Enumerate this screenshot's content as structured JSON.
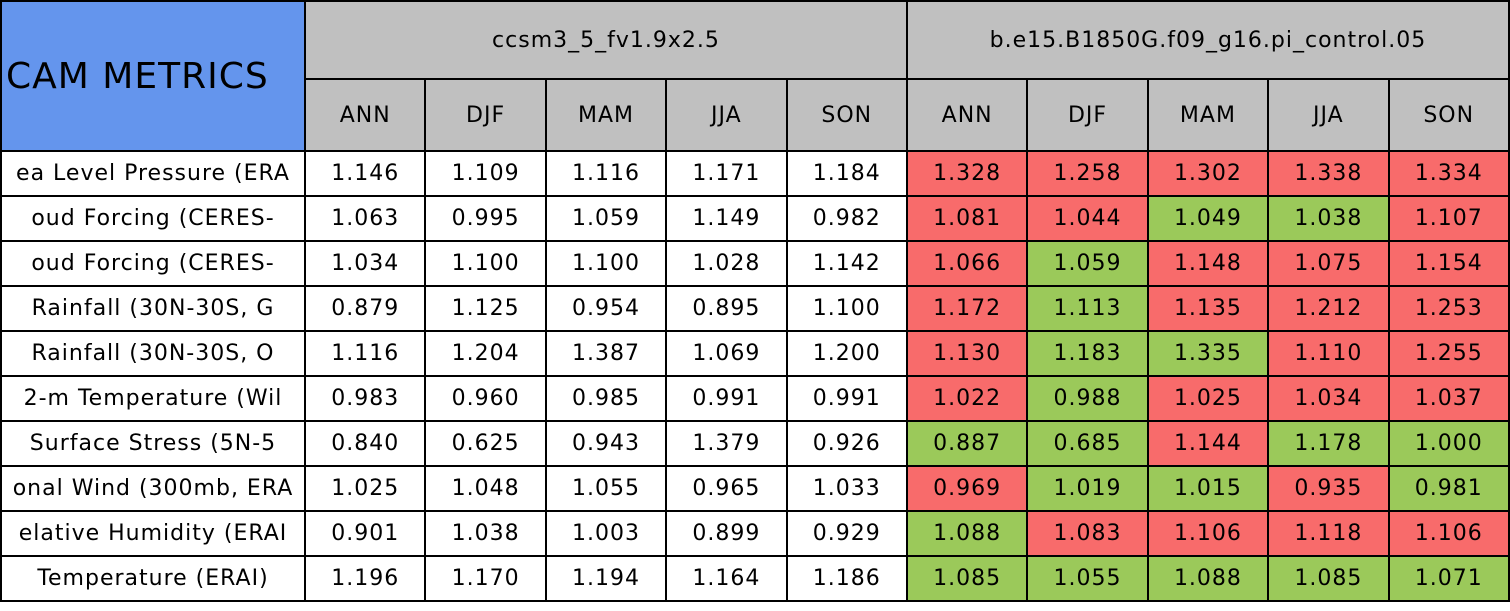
{
  "header": {
    "title": "CAM METRICS",
    "models": [
      "ccsm3_5_fv1.9x2.5",
      "b.e15.B1850G.f09_g16.pi_control.05"
    ],
    "seasons": [
      "ANN",
      "DJF",
      "MAM",
      "JJA",
      "SON",
      "ANN",
      "DJF",
      "MAM",
      "JJA",
      "SON"
    ]
  },
  "colors": {
    "title": "#6495ed",
    "header": "#c0c0c0",
    "plain": "#ffffff",
    "worse": "#f86b6b",
    "better": "#9bc95a"
  },
  "table": {
    "rows": [
      {
        "label": "ea Level Pressure (ERA",
        "cells": [
          "1.146",
          "1.109",
          "1.116",
          "1.171",
          "1.184",
          "1.328",
          "1.258",
          "1.302",
          "1.338",
          "1.334"
        ],
        "shade": [
          "plain",
          "plain",
          "plain",
          "plain",
          "plain",
          "worse",
          "worse",
          "worse",
          "worse",
          "worse"
        ]
      },
      {
        "label": "oud Forcing (CERES-",
        "cells": [
          "1.063",
          "0.995",
          "1.059",
          "1.149",
          "0.982",
          "1.081",
          "1.044",
          "1.049",
          "1.038",
          "1.107"
        ],
        "shade": [
          "plain",
          "plain",
          "plain",
          "plain",
          "plain",
          "worse",
          "worse",
          "better",
          "better",
          "worse"
        ]
      },
      {
        "label": "oud Forcing (CERES-",
        "cells": [
          "1.034",
          "1.100",
          "1.100",
          "1.028",
          "1.142",
          "1.066",
          "1.059",
          "1.148",
          "1.075",
          "1.154"
        ],
        "shade": [
          "plain",
          "plain",
          "plain",
          "plain",
          "plain",
          "worse",
          "better",
          "worse",
          "worse",
          "worse"
        ]
      },
      {
        "label": "Rainfall (30N-30S, G",
        "cells": [
          "0.879",
          "1.125",
          "0.954",
          "0.895",
          "1.100",
          "1.172",
          "1.113",
          "1.135",
          "1.212",
          "1.253"
        ],
        "shade": [
          "plain",
          "plain",
          "plain",
          "plain",
          "plain",
          "worse",
          "better",
          "worse",
          "worse",
          "worse"
        ]
      },
      {
        "label": "Rainfall (30N-30S, O",
        "cells": [
          "1.116",
          "1.204",
          "1.387",
          "1.069",
          "1.200",
          "1.130",
          "1.183",
          "1.335",
          "1.110",
          "1.255"
        ],
        "shade": [
          "plain",
          "plain",
          "plain",
          "plain",
          "plain",
          "worse",
          "better",
          "better",
          "worse",
          "worse"
        ]
      },
      {
        "label": "2-m Temperature (Wil",
        "cells": [
          "0.983",
          "0.960",
          "0.985",
          "0.991",
          "0.991",
          "1.022",
          "0.988",
          "1.025",
          "1.034",
          "1.037"
        ],
        "shade": [
          "plain",
          "plain",
          "plain",
          "plain",
          "plain",
          "worse",
          "better",
          "worse",
          "worse",
          "worse"
        ]
      },
      {
        "label": "Surface Stress (5N-5",
        "cells": [
          "0.840",
          "0.625",
          "0.943",
          "1.379",
          "0.926",
          "0.887",
          "0.685",
          "1.144",
          "1.178",
          "1.000"
        ],
        "shade": [
          "plain",
          "plain",
          "plain",
          "plain",
          "plain",
          "better",
          "better",
          "worse",
          "better",
          "better"
        ]
      },
      {
        "label": "onal Wind (300mb, ERA",
        "cells": [
          "1.025",
          "1.048",
          "1.055",
          "0.965",
          "1.033",
          "0.969",
          "1.019",
          "1.015",
          "0.935",
          "0.981"
        ],
        "shade": [
          "plain",
          "plain",
          "plain",
          "plain",
          "plain",
          "worse",
          "better",
          "better",
          "worse",
          "better"
        ]
      },
      {
        "label": "elative Humidity (ERAI",
        "cells": [
          "0.901",
          "1.038",
          "1.003",
          "0.899",
          "0.929",
          "1.088",
          "1.083",
          "1.106",
          "1.118",
          "1.106"
        ],
        "shade": [
          "plain",
          "plain",
          "plain",
          "plain",
          "plain",
          "better",
          "worse",
          "worse",
          "worse",
          "worse"
        ]
      },
      {
        "label": "Temperature (ERAI)",
        "cells": [
          "1.196",
          "1.170",
          "1.194",
          "1.164",
          "1.186",
          "1.085",
          "1.055",
          "1.088",
          "1.085",
          "1.071"
        ],
        "shade": [
          "plain",
          "plain",
          "plain",
          "plain",
          "plain",
          "better",
          "better",
          "better",
          "better",
          "better"
        ]
      }
    ]
  }
}
